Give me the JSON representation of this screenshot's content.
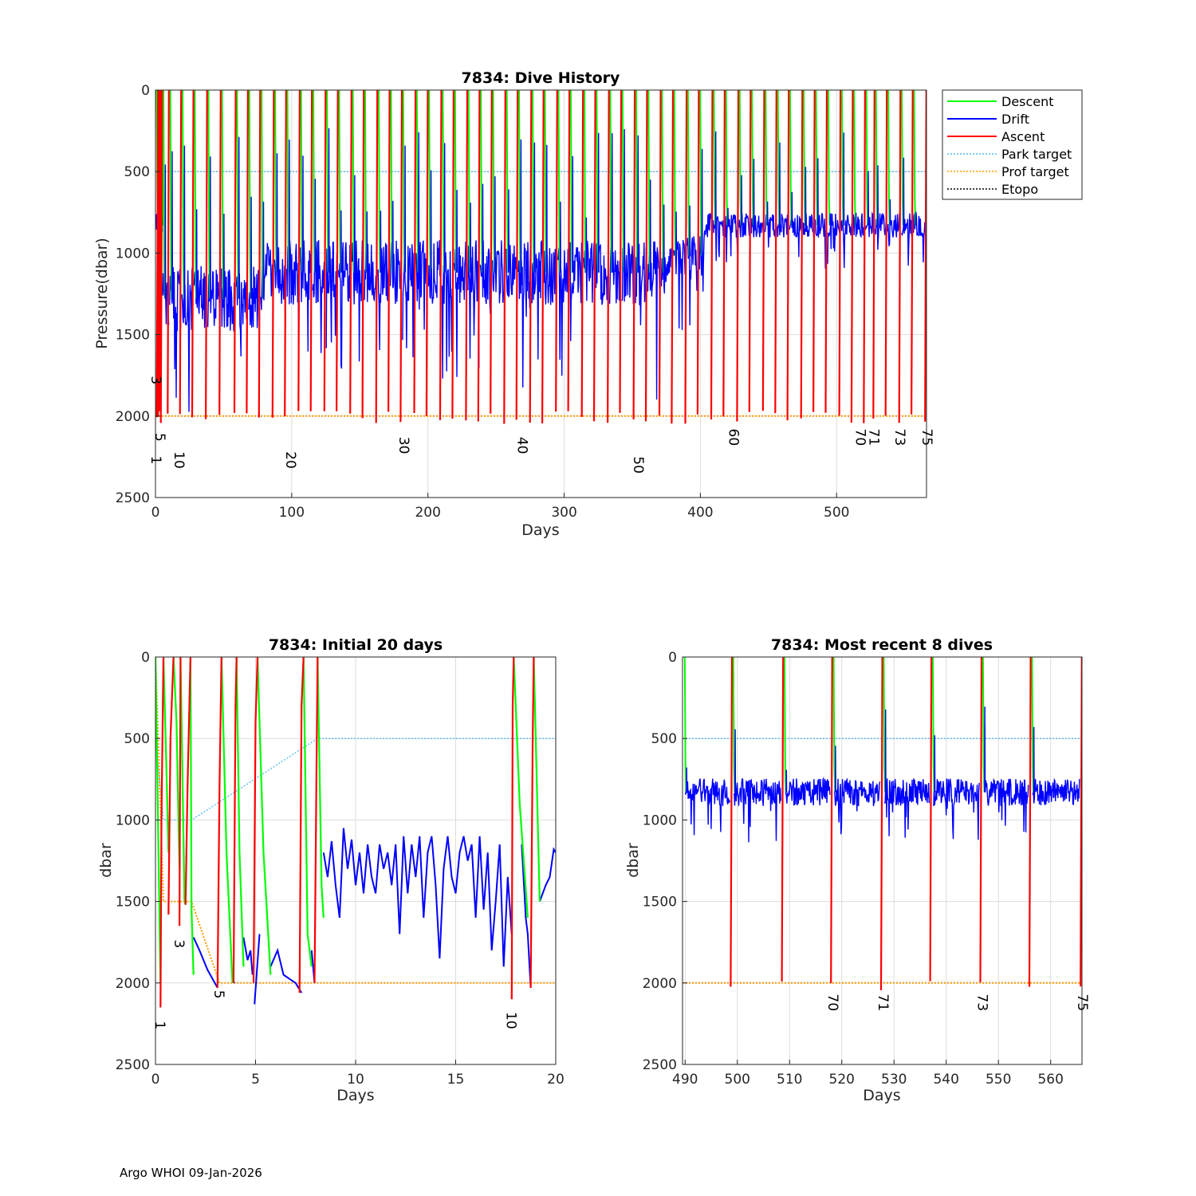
{
  "footer": "Argo WHOI 09-Jan-2026",
  "colors": {
    "descent": "#00ff00",
    "drift": "#0000ff",
    "ascent": "#ff0000",
    "park": "#4db8e8",
    "prof": "#ff9900",
    "etopo": "#000000",
    "grid": "#dcdcdc",
    "axis": "#262626"
  },
  "legend": {
    "placement": "outside-top-right",
    "entries": [
      {
        "label": "Descent",
        "color": "#00ff00",
        "style": "solid"
      },
      {
        "label": "Drift",
        "color": "#0000ff",
        "style": "solid"
      },
      {
        "label": "Ascent",
        "color": "#ff0000",
        "style": "solid"
      },
      {
        "label": "Park target",
        "color": "#4db8e8",
        "style": "dotted"
      },
      {
        "label": "Prof target",
        "color": "#ff9900",
        "style": "dotted"
      },
      {
        "label": "Etopo",
        "color": "#000000",
        "style": "dotted"
      }
    ]
  },
  "chart_data": [
    {
      "id": "history",
      "type": "line",
      "title": "7834: Dive History",
      "xlabel": "Days",
      "ylabel": "Pressure(dbar)",
      "xlim": [
        0,
        566
      ],
      "ylim": [
        0,
        2500
      ],
      "y_reversed": true,
      "grid": true,
      "xticks": [
        0,
        100,
        200,
        300,
        400,
        500
      ],
      "yticks": [
        0,
        500,
        1000,
        1500,
        2000,
        2500
      ],
      "park_target": 500,
      "prof_target": 2000,
      "dive_days": [
        0,
        2,
        3,
        4,
        5,
        10,
        19,
        28,
        38,
        48,
        59,
        68,
        77,
        87,
        96,
        106,
        115,
        125,
        134,
        144,
        153,
        163,
        172,
        181,
        191,
        200,
        210,
        219,
        229,
        238,
        247,
        257,
        266,
        276,
        285,
        295,
        304,
        314,
        323,
        333,
        342,
        352,
        361,
        371,
        380,
        390,
        399,
        409,
        418,
        428,
        437,
        447,
        456,
        465,
        475,
        484,
        493,
        503,
        512,
        521,
        528,
        537,
        547,
        556,
        566
      ],
      "drift_segments": [
        {
          "x0": 5,
          "x1": 78,
          "mean": 1280,
          "amp": 200
        },
        {
          "x0": 78,
          "x1": 375,
          "mean": 1120,
          "amp": 200
        },
        {
          "x0": 375,
          "x1": 403,
          "mean": 1020,
          "amp": 130
        },
        {
          "x0": 403,
          "x1": 566,
          "mean": 830,
          "amp": 75
        }
      ],
      "dive_labels": [
        {
          "n": "1",
          "x": 0,
          "p": 2270
        },
        {
          "n": "5",
          "x": 3,
          "p": 2130
        },
        {
          "n": "3",
          "x": 0,
          "p": 1780
        },
        {
          "n": "10",
          "x": 17,
          "p": 2270
        },
        {
          "n": "20",
          "x": 99,
          "p": 2270
        },
        {
          "n": "30",
          "x": 182,
          "p": 2180
        },
        {
          "n": "40",
          "x": 269,
          "p": 2180
        },
        {
          "n": "50",
          "x": 354,
          "p": 2300
        },
        {
          "n": "60",
          "x": 424,
          "p": 2130
        },
        {
          "n": "70",
          "x": 517,
          "p": 2130
        },
        {
          "n": "71",
          "x": 527,
          "p": 2130
        },
        {
          "n": "73",
          "x": 546,
          "p": 2130
        },
        {
          "n": "75",
          "x": 566,
          "p": 2130
        }
      ]
    },
    {
      "id": "initial",
      "type": "line",
      "title": "7834: Initial 20 days",
      "xlabel": "Days",
      "ylabel": "dbar",
      "xlim": [
        0,
        20
      ],
      "ylim": [
        0,
        2500
      ],
      "y_reversed": true,
      "grid": true,
      "xticks": [
        0,
        5,
        10,
        15,
        20
      ],
      "yticks": [
        0,
        500,
        1000,
        1500,
        2000,
        2500
      ],
      "park_target": [
        [
          0,
          500
        ],
        [
          0.4,
          1000
        ],
        [
          1.8,
          1000
        ],
        [
          8.1,
          500
        ],
        [
          20,
          500
        ]
      ],
      "prof_target": [
        [
          0,
          0
        ],
        [
          0.4,
          1500
        ],
        [
          1.8,
          1500
        ],
        [
          3.2,
          2000
        ],
        [
          20,
          2000
        ]
      ],
      "descent": [
        [
          [
            0.0,
            0
          ],
          [
            0.15,
            1200
          ],
          [
            0.25,
            2000
          ]
        ],
        [
          [
            0.4,
            0
          ],
          [
            0.55,
            700
          ],
          [
            0.65,
            1200
          ]
        ],
        [
          [
            0.9,
            0
          ],
          [
            1.05,
            400
          ],
          [
            1.2,
            1300
          ]
        ],
        [
          [
            1.25,
            0
          ],
          [
            1.45,
            1500
          ],
          [
            1.5,
            1520
          ]
        ],
        [
          [
            1.75,
            0
          ],
          [
            1.8,
            1550
          ],
          [
            1.9,
            1950
          ]
        ],
        [
          [
            3.3,
            0
          ],
          [
            3.55,
            1200
          ],
          [
            3.85,
            2000
          ]
        ],
        [
          [
            4.05,
            0
          ],
          [
            4.2,
            1200
          ],
          [
            4.4,
            1900
          ]
        ],
        [
          [
            5.1,
            0
          ],
          [
            5.4,
            1200
          ],
          [
            5.75,
            1950
          ]
        ],
        [
          [
            7.4,
            0
          ],
          [
            7.6,
            1700
          ],
          [
            7.8,
            1900
          ]
        ],
        [
          [
            8.1,
            0
          ],
          [
            8.3,
            1400
          ],
          [
            8.4,
            1600
          ]
        ],
        [
          [
            17.9,
            0
          ],
          [
            18.2,
            900
          ],
          [
            18.6,
            1600
          ]
        ],
        [
          [
            18.9,
            0
          ],
          [
            19.0,
            500
          ],
          [
            19.2,
            1500
          ]
        ]
      ],
      "drift": [
        [
          [
            1.9,
            1720
          ],
          [
            2.2,
            1800
          ],
          [
            2.6,
            1920
          ],
          [
            3.1,
            2030
          ]
        ],
        [
          [
            3.85,
            1980
          ],
          [
            3.95,
            2000
          ]
        ],
        [
          [
            4.4,
            1720
          ],
          [
            4.6,
            1860
          ],
          [
            4.75,
            1800
          ],
          [
            4.85,
            1950
          ]
        ],
        [
          [
            4.95,
            2130
          ],
          [
            5.2,
            1700
          ]
        ],
        [
          [
            5.75,
            1900
          ],
          [
            6.1,
            1800
          ],
          [
            6.4,
            1950
          ],
          [
            7.0,
            2000
          ],
          [
            7.3,
            2060
          ]
        ],
        [
          [
            7.8,
            1800
          ],
          [
            7.95,
            2000
          ]
        ],
        [
          [
            8.4,
            1200
          ],
          [
            8.6,
            1350
          ],
          [
            8.8,
            1130
          ],
          [
            9.0,
            1400
          ],
          [
            9.2,
            1600
          ],
          [
            9.4,
            1050
          ],
          [
            9.6,
            1300
          ],
          [
            9.8,
            1120
          ],
          [
            10.0,
            1400
          ],
          [
            10.2,
            1200
          ],
          [
            10.4,
            1450
          ],
          [
            10.6,
            1150
          ],
          [
            10.8,
            1350
          ],
          [
            11.0,
            1450
          ],
          [
            11.2,
            1150
          ],
          [
            11.4,
            1300
          ],
          [
            11.6,
            1200
          ],
          [
            11.8,
            1400
          ],
          [
            12.0,
            1150
          ],
          [
            12.2,
            1700
          ],
          [
            12.4,
            1100
          ],
          [
            12.6,
            1450
          ],
          [
            12.8,
            1150
          ],
          [
            13.0,
            1350
          ],
          [
            13.2,
            1100
          ],
          [
            13.4,
            1600
          ],
          [
            13.6,
            1200
          ],
          [
            13.8,
            1100
          ],
          [
            14.0,
            1400
          ],
          [
            14.2,
            1850
          ],
          [
            14.4,
            1300
          ],
          [
            14.6,
            1100
          ],
          [
            14.8,
            1350
          ],
          [
            15.0,
            1450
          ],
          [
            15.2,
            1200
          ],
          [
            15.4,
            1100
          ],
          [
            15.6,
            1250
          ],
          [
            15.8,
            1150
          ],
          [
            16.0,
            1600
          ],
          [
            16.2,
            1100
          ],
          [
            16.4,
            1550
          ],
          [
            16.6,
            1200
          ],
          [
            16.8,
            1800
          ],
          [
            17.0,
            1500
          ],
          [
            17.2,
            1150
          ],
          [
            17.4,
            1900
          ],
          [
            17.6,
            1350
          ],
          [
            17.8,
            1700
          ]
        ],
        [
          [
            18.3,
            1150
          ],
          [
            18.5,
            1600
          ],
          [
            18.6,
            1700
          ],
          [
            18.75,
            2030
          ]
        ],
        [
          [
            19.2,
            1500
          ],
          [
            19.5,
            1400
          ],
          [
            19.7,
            1350
          ],
          [
            19.9,
            1180
          ],
          [
            20.0,
            1200
          ]
        ]
      ],
      "ascent": [
        [
          [
            0.25,
            2150
          ],
          [
            0.3,
            1000
          ],
          [
            0.4,
            0
          ]
        ],
        [
          [
            0.65,
            1580
          ],
          [
            0.75,
            500
          ],
          [
            0.9,
            0
          ]
        ],
        [
          [
            1.2,
            1650
          ],
          [
            1.25,
            0
          ]
        ],
        [
          [
            1.5,
            1520
          ],
          [
            1.6,
            800
          ],
          [
            1.75,
            0
          ]
        ],
        [
          [
            3.1,
            2030
          ],
          [
            3.2,
            800
          ],
          [
            3.3,
            0
          ]
        ],
        [
          [
            3.9,
            2000
          ],
          [
            4.0,
            300
          ],
          [
            4.05,
            0
          ]
        ],
        [
          [
            4.9,
            2000
          ],
          [
            5.0,
            400
          ],
          [
            5.1,
            0
          ]
        ],
        [
          [
            7.2,
            2060
          ],
          [
            7.3,
            300
          ],
          [
            7.4,
            0
          ]
        ],
        [
          [
            7.95,
            2000
          ],
          [
            8.05,
            600
          ],
          [
            8.1,
            0
          ]
        ],
        [
          [
            17.8,
            2100
          ],
          [
            17.85,
            300
          ],
          [
            17.9,
            0
          ]
        ],
        [
          [
            18.75,
            2030
          ],
          [
            18.85,
            500
          ],
          [
            18.9,
            0
          ]
        ]
      ],
      "dive_labels": [
        {
          "n": "1",
          "x": 0.2,
          "p": 2260
        },
        {
          "n": "3",
          "x": 1.15,
          "p": 1760
        },
        {
          "n": "5",
          "x": 3.15,
          "p": 2070
        },
        {
          "n": "10",
          "x": 17.75,
          "p": 2230
        }
      ]
    },
    {
      "id": "recent",
      "type": "line",
      "title": "7834: Most recent 8 dives",
      "xlabel": "Days",
      "ylabel": "dbar",
      "xlim": [
        489.5,
        566
      ],
      "ylim": [
        0,
        2500
      ],
      "y_reversed": true,
      "grid": true,
      "xticks": [
        490,
        500,
        510,
        520,
        530,
        540,
        550,
        560
      ],
      "yticks": [
        0,
        500,
        1000,
        1500,
        2000,
        2500
      ],
      "park_target": 500,
      "prof_target": 2000,
      "dive_days": [
        489.7,
        499,
        508.8,
        518.2,
        527.8,
        537.2,
        546.8,
        556.2,
        566
      ],
      "drift_mean": 830,
      "drift_amp": 85,
      "dive_labels": [
        {
          "n": "70",
          "x": 518.2,
          "p": 2120
        },
        {
          "n": "71",
          "x": 527.8,
          "p": 2120
        },
        {
          "n": "73",
          "x": 546.8,
          "p": 2120
        },
        {
          "n": "75",
          "x": 566,
          "p": 2120
        }
      ]
    }
  ]
}
